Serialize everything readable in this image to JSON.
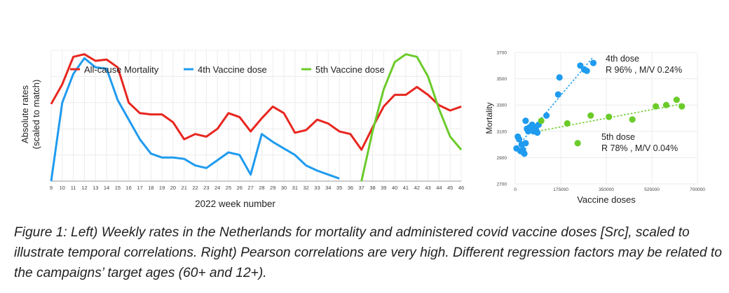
{
  "caption": "Figure 1: Left) Weekly rates in the Netherlands for mortality and administered covid vaccine doses [Src], scaled to illustrate temporal correlations. Right) Pearson correlations are very high. Different regression factors may be related to the campaigns’ target ages (60+ and 12+).",
  "chart_data": [
    {
      "type": "line",
      "xlabel": "2022 week number",
      "ylabel": "Absolute rates (scaled to match)",
      "x": [
        9,
        10,
        11,
        12,
        13,
        14,
        15,
        16,
        17,
        18,
        19,
        20,
        21,
        22,
        23,
        24,
        25,
        26,
        27,
        28,
        29,
        30,
        31,
        32,
        33,
        34,
        35,
        36,
        37,
        38,
        39,
        40,
        41,
        42,
        43,
        44,
        45,
        46
      ],
      "ylim": [
        0,
        100
      ],
      "grid": true,
      "legend_position": "top-left",
      "series": [
        {
          "name": "All-cause Mortality",
          "color": "#e8261f",
          "x": [
            9,
            10,
            11,
            12,
            13,
            14,
            15,
            16,
            17,
            18,
            19,
            20,
            21,
            22,
            23,
            24,
            25,
            26,
            27,
            28,
            29,
            30,
            31,
            32,
            33,
            34,
            35,
            36,
            37,
            38,
            39,
            40,
            41,
            42,
            43,
            44,
            45,
            46
          ],
          "values": [
            59,
            74,
            95,
            97,
            92,
            93,
            87,
            60,
            52,
            51,
            51,
            45,
            32,
            36,
            34,
            40,
            52,
            49,
            38,
            48,
            57,
            52,
            37,
            39,
            47,
            44,
            38,
            36,
            24,
            41,
            57,
            66,
            66,
            72,
            66,
            58,
            54,
            57
          ]
        },
        {
          "name": "4th Vaccine dose",
          "color": "#1f9bef",
          "x": [
            9,
            10,
            11,
            12,
            13,
            14,
            15,
            16,
            17,
            18,
            19,
            20,
            21,
            22,
            23,
            24,
            25,
            26,
            27,
            28,
            29,
            30,
            31,
            32,
            33,
            34,
            35
          ],
          "values": [
            0,
            60,
            82,
            94,
            87,
            86,
            62,
            47,
            32,
            21,
            18,
            18,
            17,
            12,
            10,
            16,
            22,
            20,
            5,
            36,
            30,
            25,
            20,
            12,
            8,
            5,
            2
          ]
        },
        {
          "name": "5th Vaccine dose",
          "color": "#6bcb2a",
          "x": [
            37,
            38,
            39,
            40,
            41,
            42,
            43,
            44,
            45,
            46
          ],
          "values": [
            0,
            38,
            70,
            91,
            97,
            95,
            80,
            55,
            34,
            24
          ]
        }
      ],
      "tick_labels": [
        "9",
        "10",
        "11",
        "12",
        "13",
        "14",
        "15",
        "16",
        "17",
        "18",
        "19",
        "20",
        "21",
        "22",
        "23",
        "24",
        "25",
        "26",
        "27",
        "28",
        "29",
        "30",
        "31",
        "32",
        "33",
        "34",
        "35",
        "36",
        "37",
        "38",
        "39",
        "40",
        "41",
        "42",
        "43",
        "44",
        "45",
        "46"
      ]
    },
    {
      "type": "scatter",
      "xlabel": "Vaccine doses",
      "ylabel": "Mortality",
      "xlim": [
        0,
        700000
      ],
      "ylim": [
        2700,
        3700
      ],
      "xticks": [
        "0",
        "175000",
        "350000",
        "525000",
        "700000"
      ],
      "yticks": [
        "2700",
        "2900",
        "3100",
        "3300",
        "3500",
        "3700"
      ],
      "grid": true,
      "series": [
        {
          "name": "4th dose",
          "stat": "R 96% , M/V 0.24%",
          "color": "#1f9bef",
          "points": [
            [
              5000,
              2970
            ],
            [
              10000,
              3060
            ],
            [
              15000,
              3040
            ],
            [
              20000,
              2950
            ],
            [
              25000,
              3000
            ],
            [
              30000,
              2960
            ],
            [
              35000,
              2930
            ],
            [
              40000,
              3010
            ],
            [
              45000,
              3120
            ],
            [
              50000,
              3100
            ],
            [
              55000,
              3130
            ],
            [
              60000,
              3120
            ],
            [
              65000,
              3150
            ],
            [
              70000,
              3100
            ],
            [
              75000,
              3130
            ],
            [
              80000,
              3110
            ],
            [
              85000,
              3090
            ],
            [
              90000,
              3150
            ],
            [
              120000,
              3220
            ],
            [
              165000,
              3380
            ],
            [
              170000,
              3510
            ],
            [
              250000,
              3600
            ],
            [
              265000,
              3570
            ],
            [
              275000,
              3560
            ],
            [
              300000,
              3620
            ],
            [
              40000,
              3180
            ]
          ]
        },
        {
          "name": "5th dose",
          "stat": "R 78% , M/V 0.04%",
          "color": "#6bcb2a",
          "points": [
            [
              100000,
              3180
            ],
            [
              200000,
              3160
            ],
            [
              240000,
              3010
            ],
            [
              290000,
              3220
            ],
            [
              360000,
              3210
            ],
            [
              450000,
              3190
            ],
            [
              540000,
              3290
            ],
            [
              580000,
              3300
            ],
            [
              620000,
              3340
            ],
            [
              640000,
              3290
            ]
          ]
        }
      ]
    }
  ]
}
